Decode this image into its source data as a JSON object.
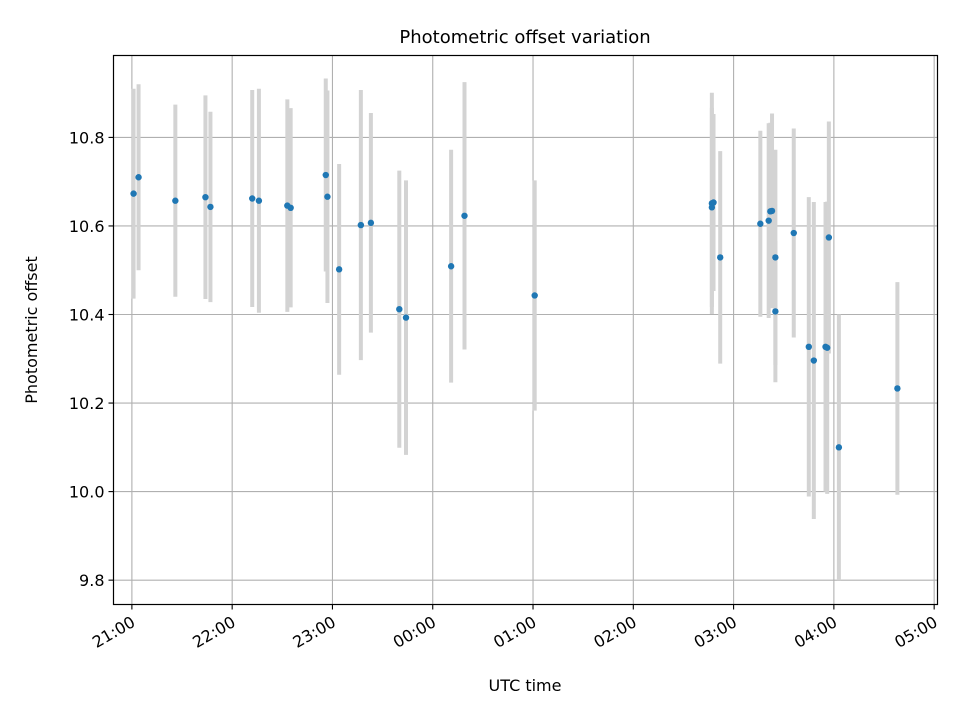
{
  "chart_data": {
    "type": "scatter",
    "title": "Photometric offset variation",
    "xlabel": "UTC time",
    "ylabel": "Photometric offset",
    "xlim": [
      "20:49",
      "05:02"
    ],
    "ylim": [
      9.745,
      10.985
    ],
    "x_ticks": [
      "21:00",
      "22:00",
      "23:00",
      "00:00",
      "01:00",
      "02:00",
      "03:00",
      "04:00",
      "05:00"
    ],
    "y_ticks": [
      "9.8",
      "10.0",
      "10.2",
      "10.4",
      "10.6",
      "10.8"
    ],
    "grid": true,
    "colors": {
      "point": "#1f77b4",
      "errorbar": "#d3d3d3",
      "grid": "#b0b0b0"
    },
    "points": [
      {
        "time": "21:01",
        "y": 10.673,
        "err": 0.237
      },
      {
        "time": "21:04",
        "y": 10.71,
        "err": 0.21
      },
      {
        "time": "21:26",
        "y": 10.657,
        "err": 0.217
      },
      {
        "time": "21:44",
        "y": 10.665,
        "err": 0.23
      },
      {
        "time": "21:47",
        "y": 10.643,
        "err": 0.215
      },
      {
        "time": "22:12",
        "y": 10.662,
        "err": 0.245
      },
      {
        "time": "22:16",
        "y": 10.657,
        "err": 0.253
      },
      {
        "time": "22:33",
        "y": 10.646,
        "err": 0.24
      },
      {
        "time": "22:35",
        "y": 10.641,
        "err": 0.225
      },
      {
        "time": "22:56",
        "y": 10.715,
        "err": 0.218
      },
      {
        "time": "22:57",
        "y": 10.666,
        "err": 0.24
      },
      {
        "time": "23:04",
        "y": 10.502,
        "err": 0.238
      },
      {
        "time": "23:17",
        "y": 10.602,
        "err": 0.305
      },
      {
        "time": "23:23",
        "y": 10.607,
        "err": 0.248
      },
      {
        "time": "23:40",
        "y": 10.412,
        "err": 0.313
      },
      {
        "time": "23:44",
        "y": 10.393,
        "err": 0.31
      },
      {
        "time": "00:11",
        "y": 10.509,
        "err": 0.263
      },
      {
        "time": "00:19",
        "y": 10.623,
        "err": 0.302
      },
      {
        "time": "01:01",
        "y": 10.443,
        "err": 0.26
      },
      {
        "time": "02:47",
        "y": 10.651,
        "err": 0.25
      },
      {
        "time": "02:47",
        "y": 10.642,
        "err": 0.225
      },
      {
        "time": "02:48",
        "y": 10.653,
        "err": 0.2
      },
      {
        "time": "02:52",
        "y": 10.529,
        "err": 0.24
      },
      {
        "time": "03:16",
        "y": 10.605,
        "err": 0.21
      },
      {
        "time": "03:21",
        "y": 10.612,
        "err": 0.22
      },
      {
        "time": "03:22",
        "y": 10.633,
        "err": 0.2
      },
      {
        "time": "03:23",
        "y": 10.634,
        "err": 0.22
      },
      {
        "time": "03:25",
        "y": 10.407,
        "err": 0.16
      },
      {
        "time": "03:25",
        "y": 10.529,
        "err": 0.243
      },
      {
        "time": "03:36",
        "y": 10.584,
        "err": 0.236
      },
      {
        "time": "03:45",
        "y": 10.327,
        "err": 0.338
      },
      {
        "time": "03:48",
        "y": 10.296,
        "err": 0.358
      },
      {
        "time": "03:55",
        "y": 10.327,
        "err": 0.327
      },
      {
        "time": "03:56",
        "y": 10.325,
        "err": 0.33
      },
      {
        "time": "03:57",
        "y": 10.574,
        "err": 0.262
      },
      {
        "time": "04:03",
        "y": 10.1,
        "err": 0.3
      },
      {
        "time": "04:38",
        "y": 10.233,
        "err": 0.24
      }
    ]
  }
}
